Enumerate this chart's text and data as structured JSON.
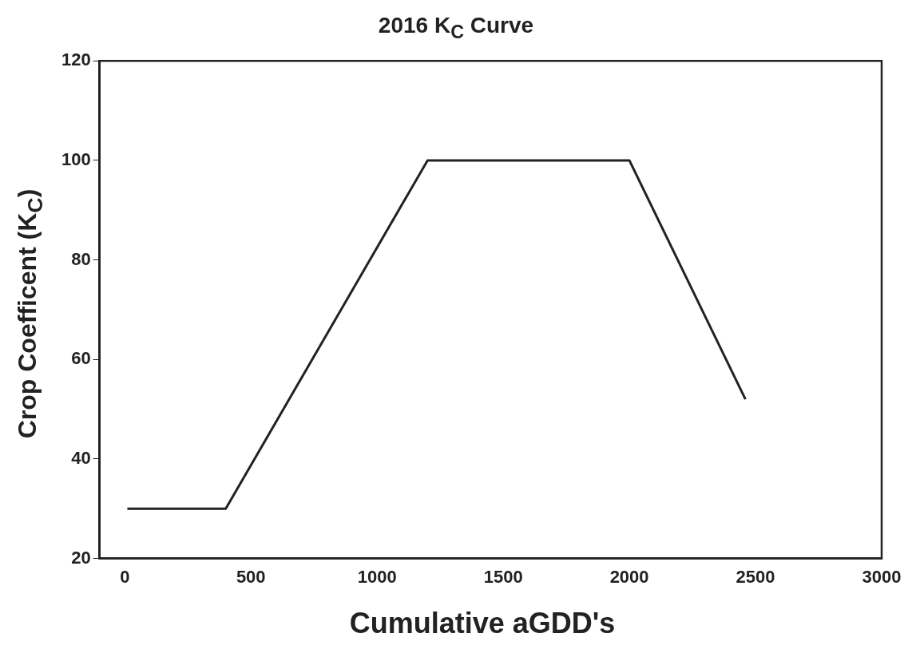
{
  "chart_data": {
    "type": "line",
    "title": "2016 K$_{C}$ Curve",
    "xlabel": "Cumulative aGDD's",
    "ylabel": "Crop Coefficent (K$_{C}$)",
    "x": [
      10,
      400,
      1200,
      2000,
      2460
    ],
    "series": [
      {
        "color": "#222222",
        "values": [
          30,
          30,
          100,
          100,
          52
        ]
      }
    ],
    "xlim": [
      -100,
      3000
    ],
    "xticks": [
      0,
      500,
      1000,
      1500,
      2000,
      2500,
      3000
    ],
    "ylim": [
      20,
      120
    ],
    "yticks": [
      20,
      40,
      60,
      80,
      100,
      120
    ],
    "grid": false,
    "legend": false,
    "marker": "none",
    "line_style": "solid"
  }
}
